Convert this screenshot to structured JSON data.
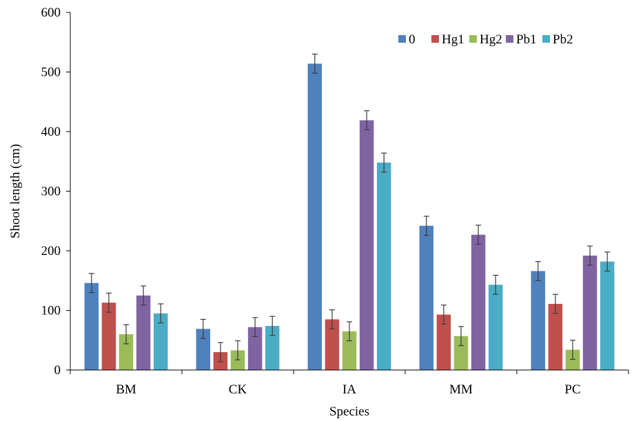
{
  "chart_data": {
    "type": "bar",
    "title": "",
    "xlabel": "Species",
    "ylabel": "Shoot length (cm)",
    "ylim": [
      0,
      600
    ],
    "yticks": [
      0,
      100,
      200,
      300,
      400,
      500,
      600
    ],
    "categories": [
      "BM",
      "CK",
      "IA",
      "MM",
      "PC"
    ],
    "series": [
      {
        "name": "0",
        "color": "#4F81BD",
        "values": [
          146,
          69,
          514,
          242,
          166
        ],
        "errors": [
          16,
          16,
          16,
          16,
          16
        ]
      },
      {
        "name": "Hg1",
        "color": "#C0504D",
        "values": [
          113,
          30,
          85,
          93,
          111
        ],
        "errors": [
          16,
          16,
          16,
          16,
          16
        ]
      },
      {
        "name": "Hg2",
        "color": "#9BBB59",
        "values": [
          60,
          33,
          65,
          57,
          34
        ],
        "errors": [
          16,
          16,
          16,
          16,
          16
        ]
      },
      {
        "name": "Pb1",
        "color": "#8064A2",
        "values": [
          125,
          72,
          419,
          227,
          192
        ],
        "errors": [
          16,
          16,
          16,
          16,
          16
        ]
      },
      {
        "name": "Pb2",
        "color": "#4BACC6",
        "values": [
          95,
          74,
          348,
          143,
          182
        ],
        "errors": [
          16,
          16,
          16,
          16,
          16
        ]
      }
    ],
    "legend_position": "top-right",
    "grid": false
  }
}
